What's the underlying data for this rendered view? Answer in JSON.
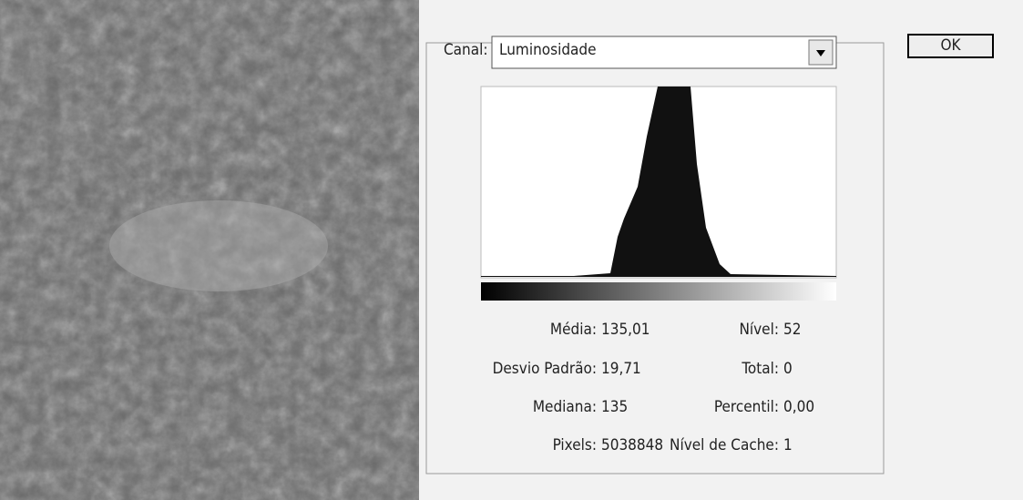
{
  "dialog": {
    "channel_label": "Canal:",
    "channel_value": "Luminosidade",
    "ok_button": "OK",
    "stats_left": [
      {
        "label": "Média:",
        "value": "135,01"
      },
      {
        "label": "Desvio Padrão:",
        "value": "19,71"
      },
      {
        "label": "Mediana:",
        "value": "135"
      },
      {
        "label": "Pixels:",
        "value": "5038848"
      }
    ],
    "stats_right": [
      {
        "label": "Nível:",
        "value": "52"
      },
      {
        "label": "Total:",
        "value": "0"
      },
      {
        "label": "Percentil:",
        "value": "0,00"
      },
      {
        "label": "Nível de Cache:",
        "value": "1"
      }
    ]
  }
}
